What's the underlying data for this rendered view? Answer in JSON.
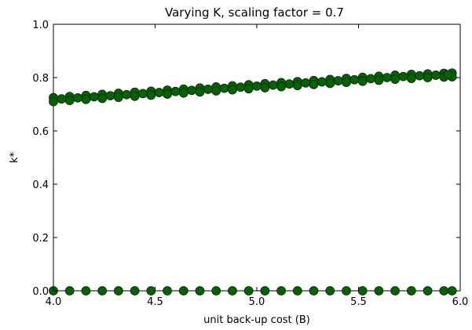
{
  "chart_data": {
    "type": "scatter",
    "title": "Varying K, scaling factor = 0.7",
    "xlabel": "unit back-up cost (B)",
    "ylabel": "k*",
    "xlim": [
      4.0,
      6.0
    ],
    "ylim": [
      0.0,
      1.0
    ],
    "xticks": [
      "4.0",
      "4.5",
      "5.0",
      "5.5",
      "6.0"
    ],
    "yticks": [
      "0.0",
      "0.2",
      "0.4",
      "0.6",
      "0.8",
      "1.0"
    ],
    "grid": false,
    "legend": "none",
    "marker_color": "#006400",
    "marker_edge": "#1a1a1a",
    "series": [
      {
        "x": [
          4.0,
          4.08,
          4.16,
          4.24,
          4.32,
          4.4,
          4.48,
          4.56,
          4.64,
          4.72,
          4.8,
          4.88,
          4.96,
          5.04,
          5.12,
          5.2,
          5.28,
          5.36,
          5.44,
          5.52,
          5.6,
          5.68,
          5.76,
          5.84,
          5.92,
          5.96
        ],
        "y": [
          0.725,
          0.729,
          0.733,
          0.737,
          0.741,
          0.745,
          0.749,
          0.753,
          0.757,
          0.761,
          0.765,
          0.769,
          0.773,
          0.777,
          0.781,
          0.785,
          0.789,
          0.793,
          0.797,
          0.801,
          0.805,
          0.809,
          0.812,
          0.814,
          0.816,
          0.817
        ]
      },
      {
        "x": [
          4.0,
          4.08,
          4.16,
          4.24,
          4.32,
          4.4,
          4.48,
          4.56,
          4.64,
          4.72,
          4.8,
          4.88,
          4.96,
          5.04,
          5.12,
          5.2,
          5.28,
          5.36,
          5.44,
          5.52,
          5.6,
          5.68,
          5.76,
          5.84,
          5.92,
          5.96
        ],
        "y": [
          0.71,
          0.714,
          0.718,
          0.722,
          0.726,
          0.73,
          0.734,
          0.738,
          0.742,
          0.746,
          0.75,
          0.754,
          0.758,
          0.762,
          0.766,
          0.77,
          0.774,
          0.778,
          0.782,
          0.786,
          0.79,
          0.794,
          0.797,
          0.8,
          0.802,
          0.803
        ]
      },
      {
        "x": [
          4.04,
          4.12,
          4.2,
          4.28,
          4.36,
          4.44,
          4.52,
          4.6,
          4.68,
          4.76,
          4.84,
          4.92,
          5.0,
          5.08,
          5.16,
          5.24,
          5.32,
          5.4,
          5.48,
          5.56,
          5.64,
          5.72,
          5.8,
          5.88,
          5.94
        ],
        "y": [
          0.72,
          0.724,
          0.728,
          0.732,
          0.736,
          0.74,
          0.744,
          0.748,
          0.752,
          0.756,
          0.76,
          0.764,
          0.768,
          0.772,
          0.776,
          0.78,
          0.784,
          0.788,
          0.792,
          0.796,
          0.8,
          0.804,
          0.807,
          0.809,
          0.811
        ]
      },
      {
        "x": [
          4.0,
          4.08,
          4.16,
          4.24,
          4.32,
          4.4,
          4.48,
          4.56,
          4.64,
          4.72,
          4.8,
          4.88,
          4.96,
          5.04,
          5.12,
          5.2,
          5.28,
          5.36,
          5.44,
          5.52,
          5.6,
          5.68,
          5.76,
          5.84,
          5.92,
          5.96
        ],
        "y": [
          0,
          0,
          0,
          0,
          0,
          0,
          0,
          0,
          0,
          0,
          0,
          0,
          0,
          0,
          0,
          0,
          0,
          0,
          0,
          0,
          0,
          0,
          0,
          0,
          0,
          0
        ]
      }
    ]
  }
}
